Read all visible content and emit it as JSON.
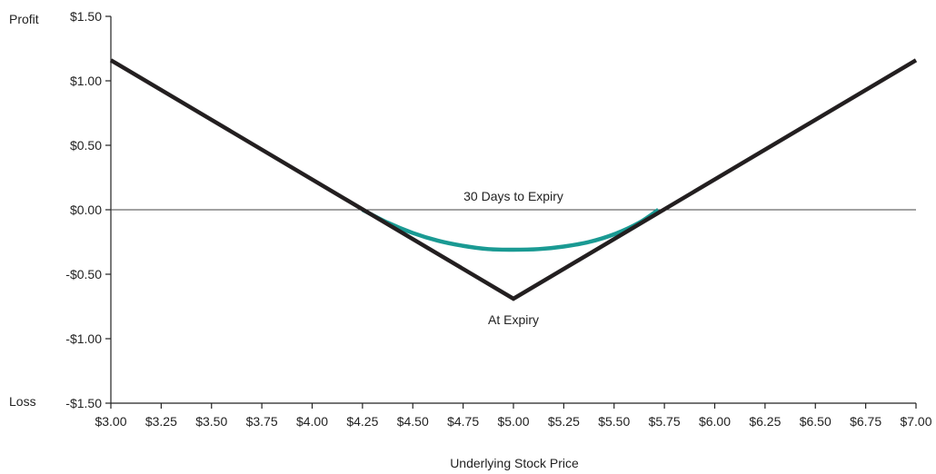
{
  "colors": {
    "at_expiry": "#231f20",
    "days_30": "#1a9a93",
    "axis": "#222222",
    "zero_line": "#444444"
  },
  "chart_data": {
    "type": "line",
    "title": "",
    "xlabel": "Underlying Stock Price",
    "ylabel_top": "Profit",
    "ylabel_bottom": "Loss",
    "xlim": [
      3.0,
      7.0
    ],
    "ylim": [
      -1.5,
      1.5
    ],
    "grid": false,
    "x_ticks": [
      3.0,
      3.25,
      3.5,
      3.75,
      4.0,
      4.25,
      4.5,
      4.75,
      5.0,
      5.25,
      5.5,
      5.75,
      6.0,
      6.25,
      6.5,
      6.75,
      7.0
    ],
    "x_tick_labels": [
      "$3.00",
      "$3.25",
      "$3.50",
      "$3.75",
      "$4.00",
      "$4.25",
      "$4.50",
      "$4.75",
      "$5.00",
      "$5.25",
      "$5.50",
      "$5.75",
      "$6.00",
      "$6.25",
      "$6.50",
      "$6.75",
      "$7.00"
    ],
    "y_ticks": [
      1.5,
      1.0,
      0.5,
      0.0,
      -0.5,
      -1.0,
      -1.5
    ],
    "y_tick_labels": [
      "$1.50",
      "$1.00",
      "$0.50",
      "$0.00",
      "-$0.50",
      "-$1.00",
      "-$1.50"
    ],
    "series": [
      {
        "name": "At Expiry",
        "x": [
          3.0,
          5.0,
          7.0
        ],
        "y": [
          1.16,
          -0.69,
          1.16
        ]
      },
      {
        "name": "30 Days to Expiry",
        "x": [
          4.25,
          4.375,
          4.5,
          4.625,
          4.75,
          4.875,
          5.0,
          5.125,
          5.25,
          5.375,
          5.5,
          5.625,
          5.72
        ],
        "y": [
          0.0,
          -0.1,
          -0.18,
          -0.24,
          -0.28,
          -0.305,
          -0.31,
          -0.305,
          -0.285,
          -0.25,
          -0.19,
          -0.1,
          0.0
        ]
      }
    ],
    "annotations": [
      {
        "text": "30 Days to Expiry",
        "x": 5.0,
        "y": 0.0,
        "anchor": "above"
      },
      {
        "text": "At Expiry",
        "x": 5.0,
        "y": -0.69,
        "anchor": "below"
      }
    ]
  }
}
